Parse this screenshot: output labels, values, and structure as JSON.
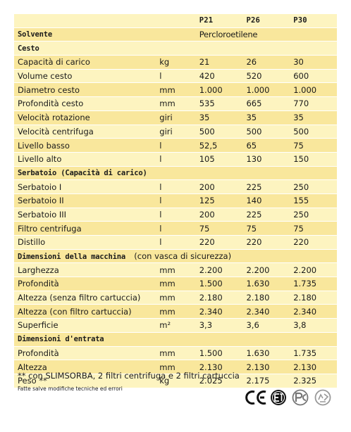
{
  "header": {
    "models": [
      "P21",
      "P26",
      "P30"
    ]
  },
  "solvent": {
    "label": "Solvente",
    "value": "Percloroetilene"
  },
  "sections": [
    {
      "title": "Cesto",
      "note": "",
      "rows": [
        {
          "label": "Capacità di carico",
          "unit": "kg",
          "values": [
            "21",
            "26",
            "30"
          ]
        },
        {
          "label": "Volume cesto",
          "unit": "l",
          "values": [
            "420",
            "520",
            "600"
          ]
        },
        {
          "label": "Diametro cesto",
          "unit": "mm",
          "values": [
            "1.000",
            "1.000",
            "1.000"
          ]
        },
        {
          "label": "Profondità cesto",
          "unit": "mm",
          "values": [
            "535",
            "665",
            "770"
          ]
        },
        {
          "label": "Velocità rotazione",
          "unit": "giri",
          "values": [
            "35",
            "35",
            "35"
          ]
        },
        {
          "label": "Velocità centrifuga",
          "unit": "giri",
          "values": [
            "500",
            "500",
            "500"
          ]
        },
        {
          "label": "Livello basso",
          "unit": "l",
          "values": [
            "52,5",
            "65",
            "75"
          ]
        },
        {
          "label": "Livello alto",
          "unit": "l",
          "values": [
            "105",
            "130",
            "150"
          ]
        }
      ]
    },
    {
      "title": "Serbatoio (Capacità di carico)",
      "note": "",
      "rows": [
        {
          "label": "Serbatoio I",
          "unit": "l",
          "values": [
            "200",
            "225",
            "250"
          ]
        },
        {
          "label": "Serbatoio II",
          "unit": "l",
          "values": [
            "125",
            "140",
            "155"
          ]
        },
        {
          "label": "Serbatoio III",
          "unit": "l",
          "values": [
            "200",
            "225",
            "250"
          ]
        },
        {
          "label": "Filtro centrifuga",
          "unit": "l",
          "values": [
            "75",
            "75",
            "75"
          ]
        },
        {
          "label": "Distillo",
          "unit": "l",
          "values": [
            "220",
            "220",
            "220"
          ]
        }
      ]
    },
    {
      "title": "Dimensioni della macchina",
      "note": "(con vasca di sicurezza)",
      "rows": [
        {
          "label": "Larghezza",
          "unit": "mm",
          "values": [
            "2.200",
            "2.200",
            "2.200"
          ]
        },
        {
          "label": "Profondità",
          "unit": "mm",
          "values": [
            "1.500",
            "1.630",
            "1.735"
          ]
        },
        {
          "label": "Altezza (senza filtro cartuccia)",
          "unit": "mm",
          "values": [
            "2.180",
            "2.180",
            "2.180"
          ]
        },
        {
          "label": "Altezza (con filtro cartuccia)",
          "unit": "mm",
          "values": [
            "2.340",
            "2.340",
            "2.340"
          ]
        },
        {
          "label": "Superficie",
          "unit": "m²",
          "values": [
            "3,3",
            "3,6",
            "3,8"
          ]
        }
      ]
    },
    {
      "title": "Dimensioni d'entrata",
      "note": "",
      "rows": [
        {
          "label": "Profondità",
          "unit": "mm",
          "values": [
            "1.500",
            "1.630",
            "1.735"
          ]
        },
        {
          "label": "Altezza",
          "unit": "mm",
          "values": [
            "2.130",
            "2.130",
            "2.130"
          ]
        },
        {
          "label": "Peso **",
          "unit": "kg",
          "values": [
            "2.025",
            "2.175",
            "2.325"
          ]
        }
      ]
    }
  ],
  "footnote": "** con SLIMSORBA, 2 filtri centrifuga e 2 filtri cartuccia",
  "disclaimer": "Fatte salve modifiche tecniche ed errori",
  "logos": [
    "ce-mark",
    "etl-listed-mark",
    "pc-certification-mark",
    "recycling-mark"
  ],
  "colors": {
    "row_light": "#fdf4c0",
    "row_dark": "#f9e79c",
    "text": "#1a1a1a"
  }
}
